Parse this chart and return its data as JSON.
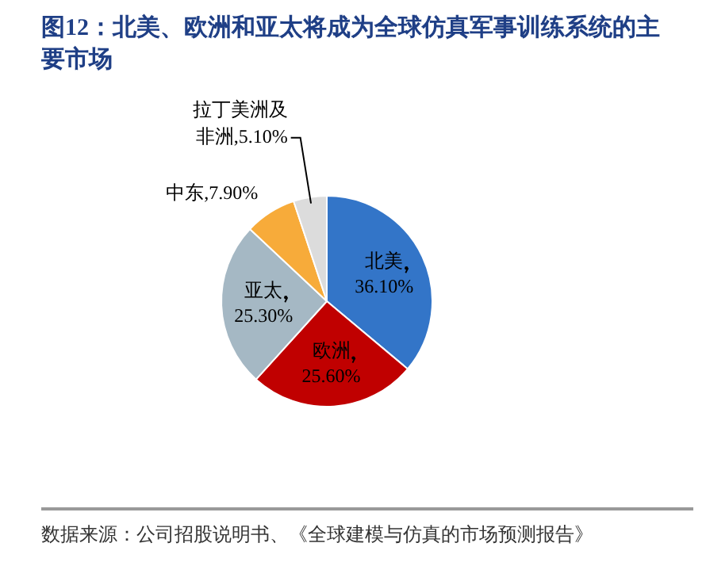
{
  "chart_data": {
    "type": "pie",
    "title": "图12：北美、欧洲和亚太将成为全球仿真军事训练系统的主要市场",
    "categories": [
      "北美",
      "欧洲",
      "亚太",
      "中东",
      "拉丁美洲及非洲"
    ],
    "values": [
      36.1,
      25.6,
      25.3,
      7.9,
      5.1
    ],
    "value_labels": [
      "36.10%",
      "25.60%",
      "25.30%",
      "7.90%",
      "5.10%"
    ],
    "colors": [
      "#3375c8",
      "#c00000",
      "#a5b8c4",
      "#f7ab3a",
      "#dcdcdc"
    ],
    "legend": false,
    "annotations": [
      "数据来源：公司招股说明书、《全球建模与仿真的市场预测报告》"
    ]
  }
}
